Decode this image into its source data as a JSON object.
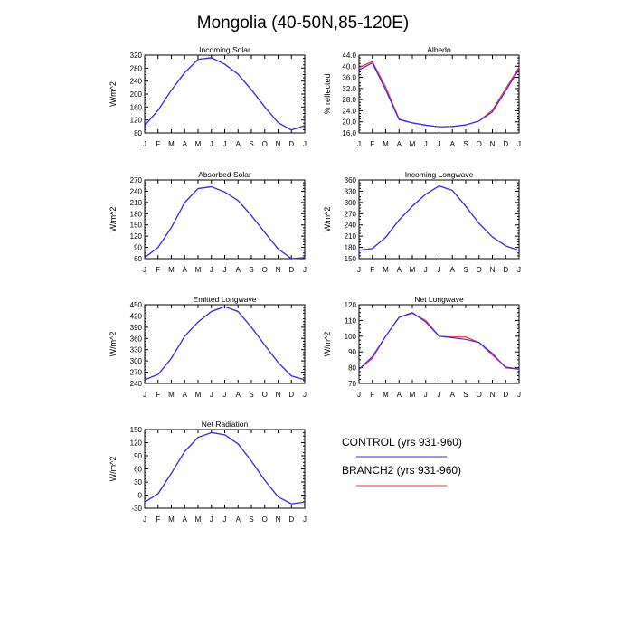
{
  "title": "Mongolia (40-50N,85-120E)",
  "colors": {
    "control": "#2b2bff",
    "branch2": "#ff2b2b",
    "axis": "#000000"
  },
  "legend": {
    "entries": [
      {
        "label": "CONTROL (yrs 931-960)",
        "series": "control"
      },
      {
        "label": "BRANCH2 (yrs 931-960)",
        "series": "branch2"
      }
    ]
  },
  "chart_data": [
    {
      "type": "line",
      "title": "Incoming Solar",
      "ylabel": "W/m^2",
      "categories": [
        "J",
        "F",
        "M",
        "A",
        "M",
        "J",
        "J",
        "A",
        "S",
        "O",
        "N",
        "D",
        "J"
      ],
      "ylim": [
        80,
        320
      ],
      "yticks": [
        "80",
        "120",
        "160",
        "200",
        "240",
        "280",
        "320"
      ],
      "series": [
        {
          "name": "CONTROL (yrs 931-960)",
          "values": [
            103,
            150,
            212,
            266,
            307,
            312,
            292,
            261,
            213,
            160,
            112,
            89,
            103
          ]
        },
        {
          "name": "BRANCH2 (yrs 931-960)",
          "values": [
            103,
            150,
            212,
            266,
            307,
            312,
            292,
            261,
            213,
            160,
            112,
            89,
            103
          ]
        }
      ]
    },
    {
      "type": "line",
      "title": "Albedo",
      "ylabel": "% reflected",
      "categories": [
        "J",
        "F",
        "M",
        "A",
        "M",
        "J",
        "J",
        "A",
        "S",
        "O",
        "N",
        "D",
        "J"
      ],
      "ylim": [
        16,
        44
      ],
      "yticks": [
        "16.0",
        "20.0",
        "24.0",
        "28.0",
        "32.0",
        "36.0",
        "40.0",
        "44.0"
      ],
      "series": [
        {
          "name": "CONTROL (yrs 931-960)",
          "values": [
            38.7,
            41.2,
            31.5,
            20.8,
            19.6,
            18.8,
            18.2,
            18.3,
            18.9,
            20.3,
            23.6,
            31.2,
            38.9
          ]
        },
        {
          "name": "BRANCH2 (yrs 931-960)",
          "values": [
            39.5,
            41.7,
            32.5,
            21.0,
            19.6,
            18.8,
            18.2,
            18.3,
            18.9,
            20.3,
            24.2,
            32.0,
            39.6
          ]
        }
      ]
    },
    {
      "type": "line",
      "title": "Absorbed Solar",
      "ylabel": "W/m^2",
      "categories": [
        "J",
        "F",
        "M",
        "A",
        "M",
        "J",
        "J",
        "A",
        "S",
        "O",
        "N",
        "D",
        "J"
      ],
      "ylim": [
        60,
        270
      ],
      "yticks": [
        "60",
        "90",
        "120",
        "150",
        "180",
        "210",
        "240",
        "270"
      ],
      "series": [
        {
          "name": "CONTROL (yrs 931-960)",
          "values": [
            63,
            90,
            143,
            210,
            247,
            252,
            238,
            215,
            175,
            130,
            86,
            60,
            63
          ]
        },
        {
          "name": "BRANCH2 (yrs 931-960)",
          "values": [
            63,
            90,
            143,
            210,
            247,
            252,
            238,
            215,
            175,
            130,
            86,
            60,
            63
          ]
        }
      ]
    },
    {
      "type": "line",
      "title": "Incoming Longwave",
      "ylabel": "W/m^2",
      "categories": [
        "J",
        "F",
        "M",
        "A",
        "M",
        "J",
        "J",
        "A",
        "S",
        "O",
        "N",
        "D",
        "J"
      ],
      "ylim": [
        150,
        360
      ],
      "yticks": [
        "150",
        "180",
        "210",
        "240",
        "270",
        "300",
        "330",
        "360"
      ],
      "series": [
        {
          "name": "CONTROL (yrs 931-960)",
          "values": [
            172,
            177,
            207,
            253,
            290,
            322,
            344,
            332,
            290,
            244,
            208,
            184,
            172
          ]
        },
        {
          "name": "BRANCH2 (yrs 931-960)",
          "values": [
            172,
            177,
            207,
            253,
            290,
            322,
            344,
            332,
            290,
            244,
            208,
            184,
            172
          ]
        }
      ]
    },
    {
      "type": "line",
      "title": "Emitted Longwave",
      "ylabel": "W/m^2",
      "categories": [
        "J",
        "F",
        "M",
        "A",
        "M",
        "J",
        "J",
        "A",
        "S",
        "O",
        "N",
        "D",
        "J"
      ],
      "ylim": [
        240,
        450
      ],
      "yticks": [
        "240",
        "270",
        "300",
        "330",
        "360",
        "390",
        "420",
        "450"
      ],
      "series": [
        {
          "name": "CONTROL (yrs 931-960)",
          "values": [
            250,
            264,
            307,
            366,
            404,
            432,
            445,
            432,
            390,
            342,
            296,
            260,
            250
          ]
        },
        {
          "name": "BRANCH2 (yrs 931-960)",
          "values": [
            250,
            264,
            307,
            366,
            404,
            432,
            445,
            432,
            390,
            342,
            296,
            260,
            250
          ]
        }
      ]
    },
    {
      "type": "line",
      "title": "Net Longwave",
      "ylabel": "W/m^2",
      "categories": [
        "J",
        "F",
        "M",
        "A",
        "M",
        "J",
        "J",
        "A",
        "S",
        "O",
        "N",
        "D",
        "J"
      ],
      "ylim": [
        70,
        120
      ],
      "yticks": [
        "70",
        "80",
        "90",
        "100",
        "110",
        "120"
      ],
      "series": [
        {
          "name": "CONTROL (yrs 931-960)",
          "values": [
            79,
            87,
            100,
            112,
            115,
            109,
            100,
            99,
            98,
            96,
            89,
            80,
            79
          ]
        },
        {
          "name": "BRANCH2 (yrs 931-960)",
          "values": [
            79,
            86,
            100,
            112,
            114.5,
            110,
            100,
            99.5,
            99.5,
            96,
            88,
            80.5,
            79
          ]
        }
      ]
    },
    {
      "type": "line",
      "title": "Net Radiation",
      "ylabel": "W/m^2",
      "categories": [
        "J",
        "F",
        "M",
        "A",
        "M",
        "J",
        "J",
        "A",
        "S",
        "O",
        "N",
        "D",
        "J"
      ],
      "ylim": [
        -30,
        150
      ],
      "yticks": [
        "-30",
        "0",
        "30",
        "60",
        "90",
        "120",
        "150"
      ],
      "series": [
        {
          "name": "CONTROL (yrs 931-960)",
          "values": [
            -16,
            3,
            50,
            100,
            132,
            143,
            138,
            117,
            78,
            34,
            -4,
            -20,
            -16
          ]
        },
        {
          "name": "BRANCH2 (yrs 931-960)",
          "values": [
            -16,
            3,
            50,
            100,
            132,
            143,
            138,
            117,
            78,
            34,
            -4,
            -20,
            -16
          ]
        }
      ]
    }
  ]
}
